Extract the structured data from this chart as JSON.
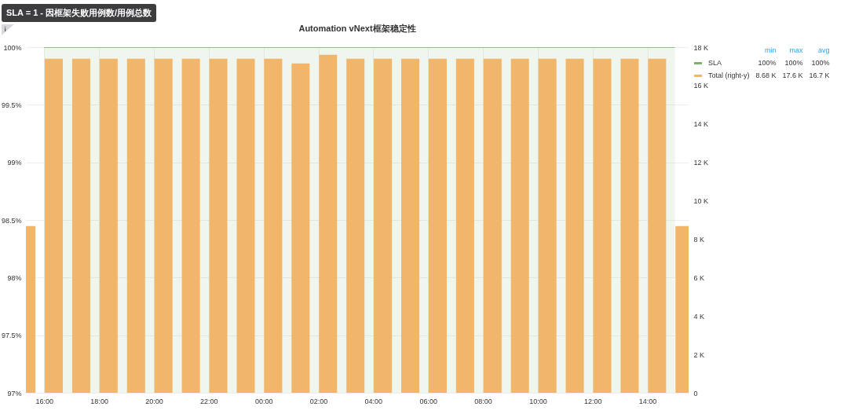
{
  "chart_data": {
    "type": "bar",
    "title": "Automation vNext框架稳定性",
    "annotations": [
      "SLA = 1 - 因框架失败用例数/用例总数",
      "min",
      "max",
      "avg",
      "100%",
      "100%",
      "100%",
      "8.68 K",
      "17.6 K",
      "16.7 K"
    ],
    "xlim": [
      "--01-01T15:20",
      "--01-02T15:30"
    ],
    "xticks": [
      {
        "value": "--01-01T16:00",
        "label": "16:00"
      },
      {
        "value": "--01-01T18:00",
        "label": "18:00"
      },
      {
        "value": "--01-01T20:00",
        "label": "20:00"
      },
      {
        "value": "--01-01T22:00",
        "label": "22:00"
      },
      {
        "value": "--01-02T00:00",
        "label": "00:00"
      },
      {
        "value": "--01-02T02:00",
        "label": "02:00"
      },
      {
        "value": "--01-02T04:00",
        "label": "04:00"
      },
      {
        "value": "--01-02T06:00",
        "label": "06:00"
      },
      {
        "value": "--01-02T08:00",
        "label": "08:00"
      },
      {
        "value": "--01-02T10:00",
        "label": "10:00"
      },
      {
        "value": "--01-02T12:00",
        "label": "12:00"
      },
      {
        "value": "--01-02T14:00",
        "label": "14:00"
      }
    ],
    "ylim": [
      97,
      100
    ],
    "yticks": [
      {
        "value": 97,
        "label": "97%"
      },
      {
        "value": 97.5,
        "label": "97.5%"
      },
      {
        "value": 98,
        "label": "98%"
      },
      {
        "value": 98.5,
        "label": "98.5%"
      },
      {
        "value": 99,
        "label": "99%"
      },
      {
        "value": 99.5,
        "label": "99.5%"
      },
      {
        "value": 100,
        "label": "100%"
      }
    ],
    "y2lim": [
      0,
      18000
    ],
    "y2ticks": [
      0,
      {
        "value": 2000,
        "label": "2 K"
      },
      {
        "value": 4000,
        "label": "4 K"
      },
      {
        "value": 6000,
        "label": "6 K"
      },
      {
        "value": 8000,
        "label": "8 K"
      },
      {
        "value": 10000,
        "label": "10 K"
      },
      {
        "value": 12000,
        "label": "12 K"
      },
      {
        "value": 14000,
        "label": "14 K"
      },
      {
        "value": 16000,
        "label": "16 K"
      },
      {
        "value": 18000,
        "label": "18 K"
      }
    ],
    "grid": true,
    "legend": "right",
    "series": [
      {
        "name": "SLA",
        "type": "area",
        "color": "#7eb26d",
        "x": [
          "--01-01T16:00",
          "--01-01T17:00",
          "--01-01T18:00",
          "--01-01T19:00",
          "--01-01T20:00",
          "--01-01T21:00",
          "--01-01T22:00",
          "--01-01T23:00",
          "--01-02T00:00",
          "--01-02T01:00",
          "--01-02T02:00",
          "--01-02T03:00",
          "--01-02T04:00",
          "--01-02T05:00",
          "--01-02T06:00",
          "--01-02T07:00",
          "--01-02T08:00",
          "--01-02T09:00",
          "--01-02T10:00",
          "--01-02T11:00",
          "--01-02T12:00",
          "--01-02T13:00",
          "--01-02T14:00",
          "--01-02T15:00"
        ],
        "values": [
          100,
          100,
          100,
          100,
          100,
          100,
          100,
          100,
          100,
          100,
          100,
          100,
          100,
          100,
          100,
          100,
          100,
          100,
          100,
          100,
          100,
          100,
          100,
          100
        ]
      },
      {
        "name": "Total (right-y)",
        "axis": "y2",
        "color": "#f2b66b",
        "x": [
          "--01-01T15:21",
          "--01-01T16:21",
          "--01-01T17:21",
          "--01-01T18:21",
          "--01-01T19:21",
          "--01-01T20:21",
          "--01-01T21:21",
          "--01-01T22:21",
          "--01-01T23:21",
          "--01-02T00:21",
          "--01-02T01:21",
          "--01-02T02:21",
          "--01-02T03:21",
          "--01-02T04:21",
          "--01-02T05:21",
          "--01-02T06:21",
          "--01-02T07:21",
          "--01-02T08:21",
          "--01-02T09:21",
          "--01-02T10:21",
          "--01-02T11:21",
          "--01-02T12:21",
          "--01-02T13:21",
          "--01-02T14:21",
          "--01-02T15:21"
        ],
        "values": [
          8680,
          17400,
          17400,
          17400,
          17400,
          17400,
          17400,
          17400,
          17400,
          17400,
          17150,
          17600,
          17400,
          17400,
          17400,
          17400,
          17400,
          17400,
          17400,
          17400,
          17400,
          17400,
          17400,
          17400,
          8680
        ]
      }
    ]
  }
}
